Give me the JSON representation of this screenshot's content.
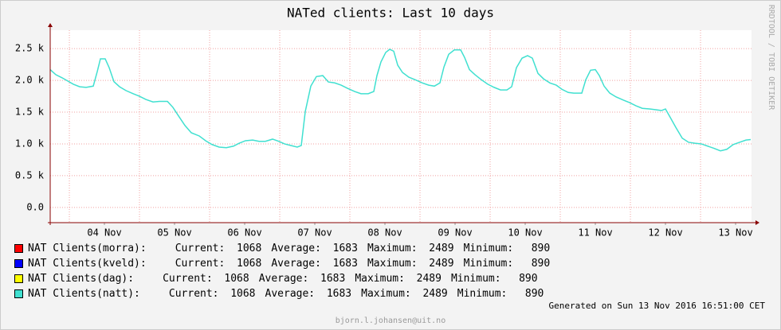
{
  "chart_data": {
    "type": "line",
    "title": "NATed clients: Last 10 days",
    "side_label": "RRDTOOL / TOBI OETIKER",
    "footer": "Generated on Sun 13 Nov 2016 16:51:00 CET",
    "credit": "bjorn.l.johansen@uit.no",
    "xlim": [
      3.727,
      13.727
    ],
    "xticks": [
      {
        "value": 4.5,
        "label": "04 Nov"
      },
      {
        "value": 5.5,
        "label": "05 Nov"
      },
      {
        "value": 6.5,
        "label": "06 Nov"
      },
      {
        "value": 7.5,
        "label": "07 Nov"
      },
      {
        "value": 8.5,
        "label": "08 Nov"
      },
      {
        "value": 9.5,
        "label": "09 Nov"
      },
      {
        "value": 10.5,
        "label": "10 Nov"
      },
      {
        "value": 11.5,
        "label": "11 Nov"
      },
      {
        "value": 12.5,
        "label": "12 Nov"
      },
      {
        "value": 13.5,
        "label": "13 Nov"
      }
    ],
    "xgrid": [
      4,
      5,
      6,
      7,
      8,
      9,
      10,
      11,
      12,
      13
    ],
    "ylim": [
      -240,
      2790
    ],
    "yticks": [
      {
        "value": 0,
        "label": "0.0"
      },
      {
        "value": 500,
        "label": "0.5 k"
      },
      {
        "value": 1000,
        "label": "1.0 k"
      },
      {
        "value": 1500,
        "label": "1.5 k"
      },
      {
        "value": 2000,
        "label": "2.0 k"
      },
      {
        "value": 2500,
        "label": "2.5 k"
      }
    ],
    "grid": true,
    "x": [
      3.727,
      3.807,
      3.898,
      3.977,
      4.057,
      4.148,
      4.239,
      4.341,
      4.398,
      4.443,
      4.511,
      4.568,
      4.636,
      4.716,
      4.807,
      4.909,
      5.0,
      5.091,
      5.193,
      5.284,
      5.398,
      5.477,
      5.557,
      5.648,
      5.739,
      5.852,
      5.943,
      6.034,
      6.136,
      6.239,
      6.341,
      6.42,
      6.511,
      6.614,
      6.705,
      6.795,
      6.898,
      6.989,
      7.068,
      7.159,
      7.25,
      7.307,
      7.364,
      7.443,
      7.523,
      7.614,
      7.693,
      7.784,
      7.875,
      7.966,
      8.068,
      8.159,
      8.261,
      8.341,
      8.386,
      8.443,
      8.511,
      8.568,
      8.625,
      8.682,
      8.75,
      8.841,
      8.932,
      9.034,
      9.125,
      9.205,
      9.284,
      9.341,
      9.409,
      9.489,
      9.58,
      9.636,
      9.705,
      9.784,
      9.875,
      9.966,
      10.057,
      10.148,
      10.239,
      10.307,
      10.375,
      10.455,
      10.534,
      10.602,
      10.682,
      10.761,
      10.852,
      10.943,
      11.023,
      11.114,
      11.193,
      11.307,
      11.364,
      11.432,
      11.5,
      11.557,
      11.625,
      11.705,
      11.795,
      11.898,
      11.989,
      12.08,
      12.17,
      12.273,
      12.352,
      12.443,
      12.5,
      12.557,
      12.648,
      12.739,
      12.83,
      12.92,
      13.011,
      13.102,
      13.193,
      13.284,
      13.375,
      13.466,
      13.557,
      13.648,
      13.716
    ],
    "series": [
      {
        "name": "NAT Clients(natt)",
        "color": "#40e0d0",
        "values": [
          2170,
          2090,
          2040,
          1990,
          1940,
          1900,
          1890,
          1910,
          2140,
          2340,
          2340,
          2200,
          1980,
          1900,
          1840,
          1790,
          1750,
          1700,
          1660,
          1670,
          1670,
          1575,
          1440,
          1290,
          1175,
          1125,
          1050,
          990,
          950,
          940,
          965,
          1010,
          1050,
          1060,
          1040,
          1040,
          1075,
          1040,
          1000,
          975,
          950,
          975,
          1510,
          1910,
          2060,
          2075,
          1975,
          1960,
          1925,
          1875,
          1825,
          1790,
          1790,
          1825,
          2075,
          2290,
          2440,
          2489,
          2460,
          2240,
          2125,
          2050,
          2010,
          1960,
          1925,
          1910,
          1960,
          2210,
          2410,
          2480,
          2480,
          2360,
          2170,
          2090,
          2010,
          1940,
          1890,
          1850,
          1850,
          1900,
          2200,
          2350,
          2390,
          2350,
          2110,
          2025,
          1960,
          1925,
          1860,
          1810,
          1800,
          1800,
          2010,
          2160,
          2170,
          2075,
          1910,
          1800,
          1740,
          1690,
          1650,
          1600,
          1560,
          1550,
          1540,
          1525,
          1550,
          1440,
          1260,
          1090,
          1025,
          1010,
          1000,
          965,
          930,
          890,
          915,
          990,
          1025,
          1060,
          1068
        ]
      }
    ],
    "stat_labels": [
      "Current:",
      "Average:",
      "Maximum:",
      "Minimum:"
    ],
    "legend": [
      {
        "name": "NAT Clients(morra):",
        "color": "#ff0000",
        "stats": [
          1068,
          1683,
          2489,
          890
        ]
      },
      {
        "name": "NAT Clients(kveld):",
        "color": "#0000ff",
        "stats": [
          1068,
          1683,
          2489,
          890
        ]
      },
      {
        "name": "NAT Clients(dag):",
        "color": "#ffff00",
        "stats": [
          1068,
          1683,
          2489,
          890
        ]
      },
      {
        "name": "NAT Clients(natt):",
        "color": "#40e0d0",
        "stats": [
          1068,
          1683,
          2489,
          890
        ]
      }
    ]
  }
}
